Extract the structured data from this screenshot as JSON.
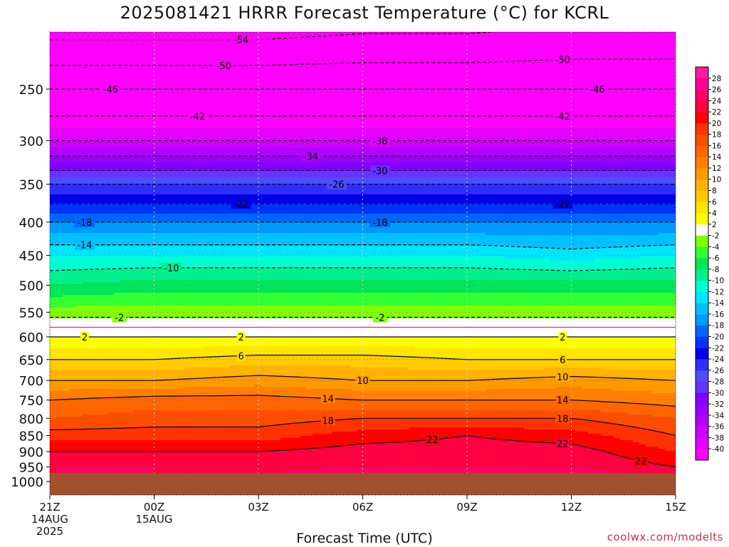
{
  "chart_data": {
    "type": "heatmap",
    "title": "2025081421 HRRR Forecast Temperature (°C) for KCRL",
    "xlabel": "Forecast Time (UTC)",
    "credit": "coolwx.com/modelts",
    "x_ticks": [
      {
        "h": 0,
        "lines": [
          "21Z",
          "14AUG",
          "2025"
        ]
      },
      {
        "h": 3,
        "lines": [
          "00Z",
          "15AUG"
        ]
      },
      {
        "h": 6,
        "lines": [
          "03Z"
        ]
      },
      {
        "h": 9,
        "lines": [
          "06Z"
        ]
      },
      {
        "h": 12,
        "lines": [
          "09Z"
        ]
      },
      {
        "h": 15,
        "lines": [
          "12Z"
        ]
      },
      {
        "h": 18,
        "lines": [
          "15Z"
        ]
      }
    ],
    "x_range": [
      0,
      18
    ],
    "y_ticks": [
      250,
      300,
      350,
      400,
      450,
      500,
      550,
      600,
      650,
      700,
      750,
      800,
      850,
      900,
      950,
      1000
    ],
    "y_range": [
      200,
      1000
    ],
    "ground_level_hpa": 970,
    "hours": [
      0,
      3,
      6,
      9,
      12,
      15,
      18
    ],
    "profiles": [
      [
        [
          200,
          -56
        ],
        [
          250,
          -46
        ],
        [
          300,
          -38
        ],
        [
          350,
          -26
        ],
        [
          400,
          -18
        ],
        [
          450,
          -12
        ],
        [
          500,
          -8
        ],
        [
          560,
          -2
        ],
        [
          580,
          0
        ],
        [
          600,
          2
        ],
        [
          650,
          6
        ],
        [
          700,
          10
        ],
        [
          750,
          14
        ],
        [
          800,
          16
        ],
        [
          850,
          19
        ],
        [
          900,
          22
        ],
        [
          950,
          24
        ],
        [
          970,
          24
        ]
      ],
      [
        [
          200,
          -56
        ],
        [
          250,
          -46
        ],
        [
          300,
          -38
        ],
        [
          350,
          -26
        ],
        [
          400,
          -18
        ],
        [
          450,
          -12
        ],
        [
          500,
          -7
        ],
        [
          560,
          -2
        ],
        [
          580,
          0
        ],
        [
          600,
          2
        ],
        [
          650,
          6
        ],
        [
          700,
          10
        ],
        [
          750,
          15
        ],
        [
          800,
          17
        ],
        [
          850,
          19
        ],
        [
          900,
          22
        ],
        [
          950,
          24
        ],
        [
          970,
          24
        ]
      ],
      [
        [
          200,
          -56
        ],
        [
          250,
          -46
        ],
        [
          300,
          -38
        ],
        [
          350,
          -26
        ],
        [
          400,
          -18
        ],
        [
          450,
          -12
        ],
        [
          500,
          -7
        ],
        [
          560,
          -2
        ],
        [
          580,
          0
        ],
        [
          600,
          2
        ],
        [
          650,
          7
        ],
        [
          700,
          11
        ],
        [
          750,
          15
        ],
        [
          800,
          17
        ],
        [
          850,
          19
        ],
        [
          900,
          22
        ],
        [
          950,
          23
        ],
        [
          970,
          24
        ]
      ],
      [
        [
          200,
          -55
        ],
        [
          250,
          -46
        ],
        [
          300,
          -38
        ],
        [
          350,
          -26
        ],
        [
          400,
          -18
        ],
        [
          450,
          -12
        ],
        [
          500,
          -7
        ],
        [
          560,
          -2
        ],
        [
          580,
          0
        ],
        [
          600,
          2
        ],
        [
          650,
          7
        ],
        [
          700,
          10
        ],
        [
          750,
          14
        ],
        [
          800,
          18
        ],
        [
          850,
          21
        ],
        [
          900,
          23
        ],
        [
          950,
          24
        ],
        [
          970,
          25
        ]
      ],
      [
        [
          200,
          -55
        ],
        [
          250,
          -46
        ],
        [
          300,
          -38
        ],
        [
          350,
          -26
        ],
        [
          400,
          -18
        ],
        [
          450,
          -12
        ],
        [
          500,
          -7
        ],
        [
          560,
          -2
        ],
        [
          580,
          0
        ],
        [
          600,
          2
        ],
        [
          650,
          6
        ],
        [
          700,
          10
        ],
        [
          750,
          14
        ],
        [
          800,
          18
        ],
        [
          850,
          22
        ],
        [
          900,
          23
        ],
        [
          950,
          24
        ],
        [
          970,
          24
        ]
      ],
      [
        [
          200,
          -54
        ],
        [
          250,
          -46
        ],
        [
          300,
          -38
        ],
        [
          350,
          -26
        ],
        [
          400,
          -18
        ],
        [
          450,
          -13
        ],
        [
          500,
          -7
        ],
        [
          560,
          -2
        ],
        [
          580,
          0
        ],
        [
          600,
          2
        ],
        [
          650,
          6
        ],
        [
          700,
          11
        ],
        [
          750,
          14
        ],
        [
          800,
          18
        ],
        [
          850,
          21
        ],
        [
          900,
          23
        ],
        [
          950,
          24
        ],
        [
          970,
          25
        ]
      ],
      [
        [
          200,
          -54
        ],
        [
          250,
          -46
        ],
        [
          300,
          -38
        ],
        [
          350,
          -26
        ],
        [
          400,
          -18
        ],
        [
          450,
          -12
        ],
        [
          500,
          -7
        ],
        [
          560,
          -2
        ],
        [
          580,
          0
        ],
        [
          600,
          2
        ],
        [
          650,
          6
        ],
        [
          700,
          10
        ],
        [
          750,
          13
        ],
        [
          800,
          16
        ],
        [
          850,
          18
        ],
        [
          900,
          20
        ],
        [
          950,
          22
        ],
        [
          970,
          23
        ]
      ]
    ],
    "contour_levels": [
      -54,
      -50,
      -46,
      -42,
      -38,
      -34,
      -30,
      -26,
      -22,
      -18,
      -14,
      -10,
      -2,
      2,
      6,
      10,
      14,
      18,
      22
    ],
    "contour_labels": [
      {
        "value": -54,
        "h": 5.4
      },
      {
        "value": -50,
        "h": 4.9
      },
      {
        "value": -50,
        "h": 14.7
      },
      {
        "value": -46,
        "h": 1.8
      },
      {
        "value": -46,
        "h": 15.7
      },
      {
        "value": -42,
        "h": 4.3
      },
      {
        "value": -42,
        "h": 14.7
      },
      {
        "value": -38,
        "h": 9.4
      },
      {
        "value": -34,
        "h": 7.4
      },
      {
        "value": -30,
        "h": 9.4
      },
      {
        "value": -26,
        "h": 8.2
      },
      {
        "value": -22,
        "h": 5.4
      },
      {
        "value": -22,
        "h": 14.7
      },
      {
        "value": -18,
        "h": 1.0
      },
      {
        "value": -18,
        "h": 9.4
      },
      {
        "value": -14,
        "h": 1.0
      },
      {
        "value": -10,
        "h": 3.5
      },
      {
        "value": -2,
        "h": 1.9
      },
      {
        "value": -2,
        "h": 9.4
      },
      {
        "value": 2,
        "h": 1.0
      },
      {
        "value": 2,
        "h": 5.4
      },
      {
        "value": 2,
        "h": 14.7
      },
      {
        "value": 6,
        "h": 5.4
      },
      {
        "value": 6,
        "h": 14.7
      },
      {
        "value": 10,
        "h": 8.9
      },
      {
        "value": 10,
        "h": 14.7
      },
      {
        "value": 14,
        "h": 8.1
      },
      {
        "value": 14,
        "h": 14.7
      },
      {
        "value": 18,
        "h": 7.9
      },
      {
        "value": 18,
        "h": 14.7
      },
      {
        "value": 22,
        "h": 10.9
      },
      {
        "value": 22,
        "h": 17.1
      },
      {
        "value": 22,
        "h": 14.7
      }
    ],
    "colorbar": {
      "levels": [
        -40,
        -38,
        -36,
        -34,
        -32,
        -30,
        -28,
        -26,
        -24,
        -22,
        -20,
        -18,
        -16,
        -14,
        -12,
        -10,
        -8,
        -6,
        -4,
        -2,
        2,
        4,
        6,
        8,
        10,
        12,
        14,
        16,
        18,
        20,
        22,
        24,
        26,
        28
      ],
      "colors": [
        "#ff00ff",
        "#e600ff",
        "#cc00ff",
        "#b300ff",
        "#9900ff",
        "#8000ff",
        "#6633ff",
        "#4d4dff",
        "#2e2eff",
        "#0000e6",
        "#0033ff",
        "#0066ff",
        "#0099ff",
        "#00c0ff",
        "#00e5ff",
        "#00ffd0",
        "#00f08c",
        "#00e65a",
        "#33ff33",
        "#7fff00",
        "#ffffff",
        "#ffff00",
        "#ffe600",
        "#ffcc00",
        "#ffb300",
        "#ff9900",
        "#ff8000",
        "#ff6600",
        "#ff4d00",
        "#ff3300",
        "#ff0000",
        "#ff0040",
        "#ff0066",
        "#ff0099",
        "#ff1a9e"
      ]
    },
    "colors": {
      "ground": "#a0522d",
      "contour": "#000000",
      "freezing_line": "#ff1493",
      "grid": "#aaaaaa",
      "credit": "#d0304a"
    }
  }
}
